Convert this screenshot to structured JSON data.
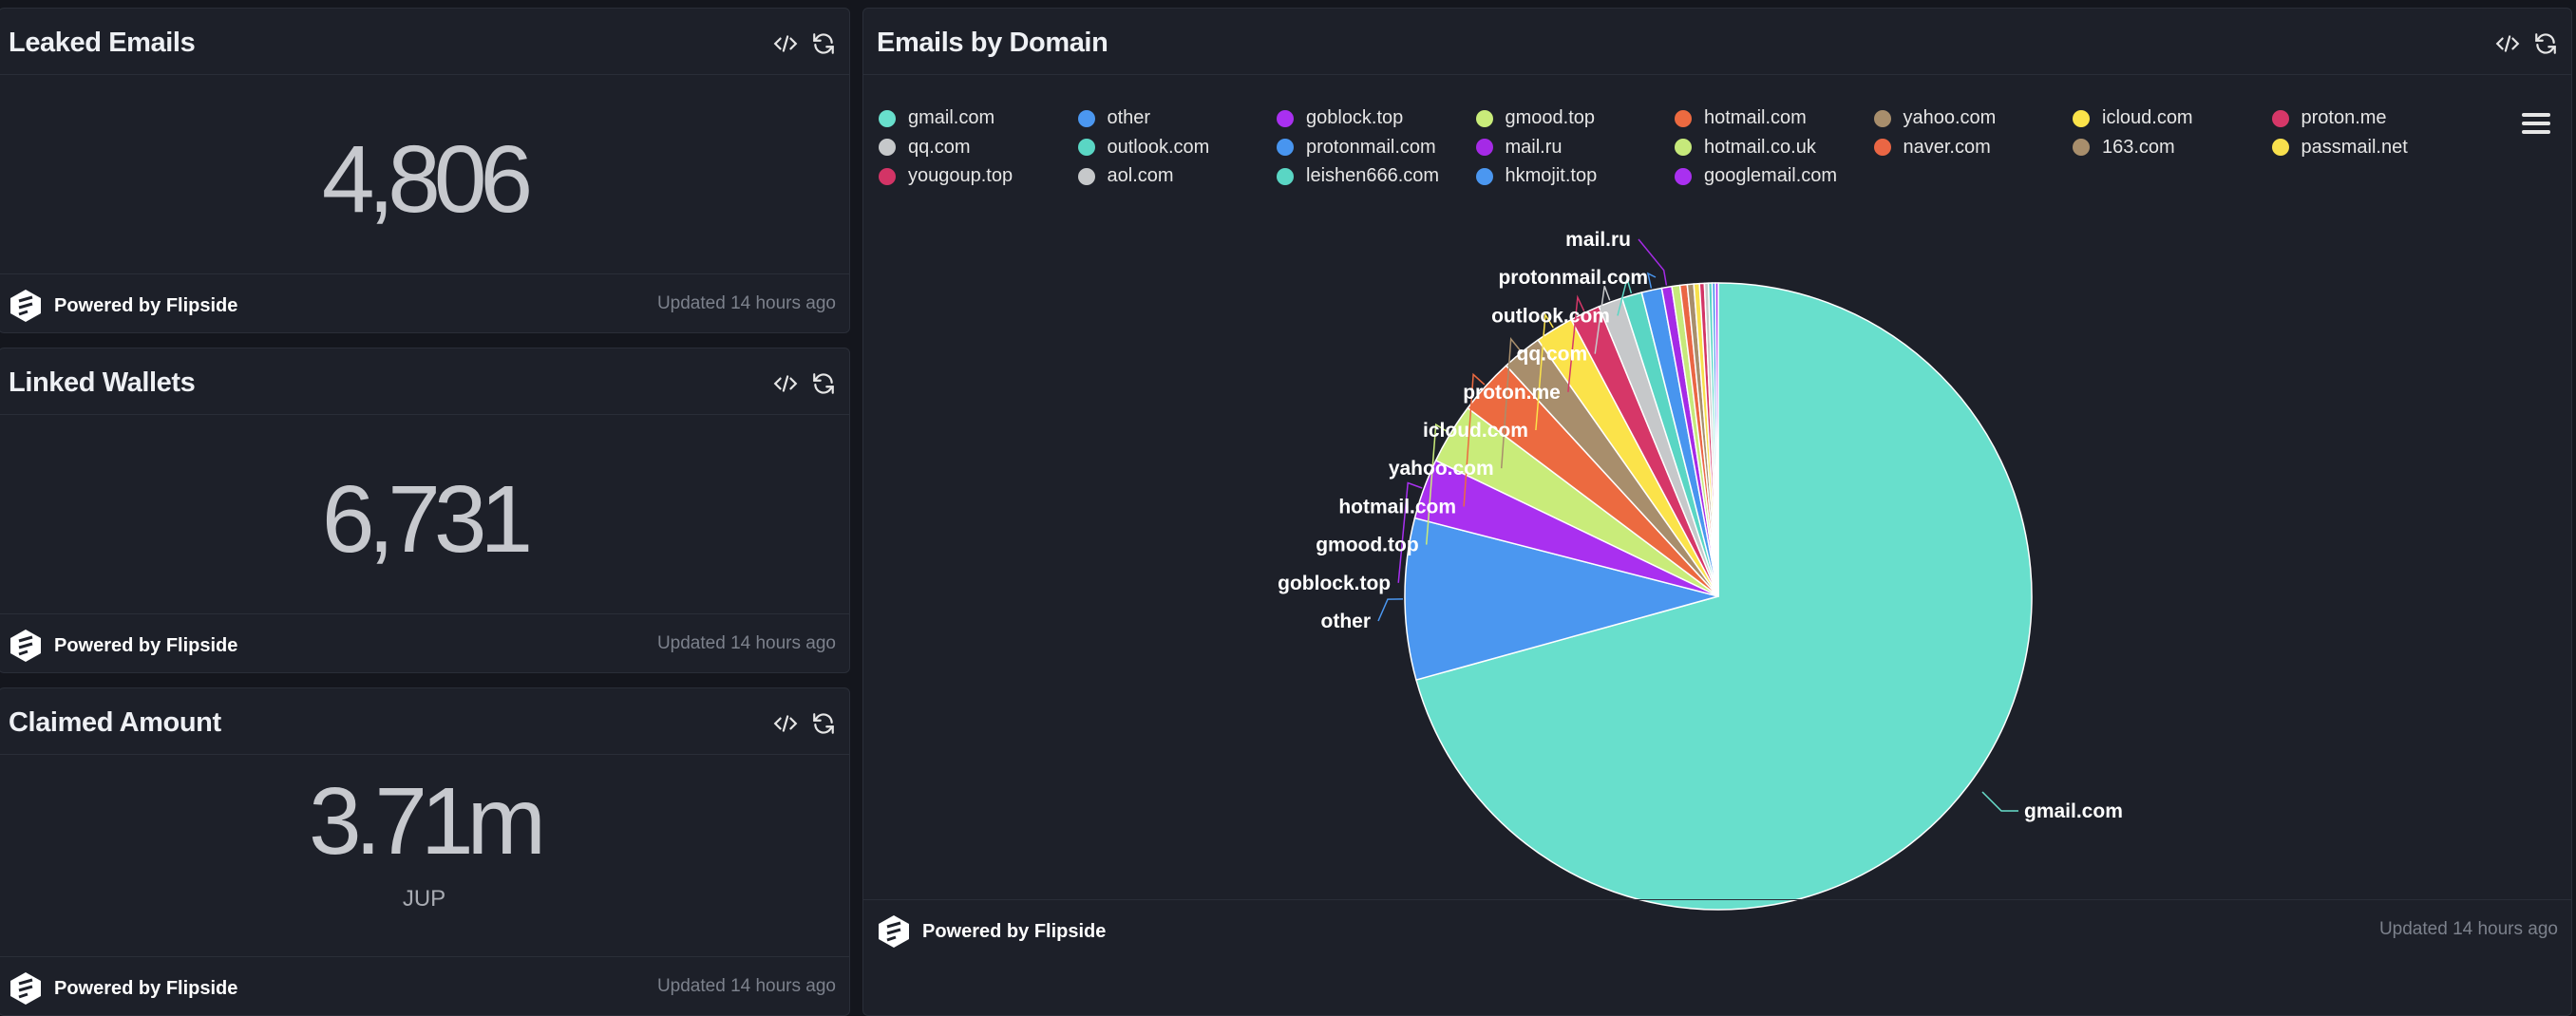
{
  "metrics": [
    {
      "title": "Leaked Emails",
      "value": "4,806",
      "unit": "",
      "powered": "Powered by Flipside",
      "updated": "Updated 14 hours ago"
    },
    {
      "title": "Linked Wallets",
      "value": "6,731",
      "unit": "",
      "powered": "Powered by Flipside",
      "updated": "Updated 14 hours ago"
    },
    {
      "title": "Claimed Amount",
      "value": "3.71m",
      "unit": "JUP",
      "powered": "Powered by Flipside",
      "updated": "Updated 14 hours ago"
    }
  ],
  "chart_panel": {
    "title": "Emails by Domain",
    "powered": "Powered by Flipside",
    "updated": "Updated 14 hours ago"
  },
  "chart_data": {
    "type": "pie",
    "title": "Emails by Domain",
    "legend_position": "top",
    "slices": [
      {
        "label": "gmail.com",
        "value": 3400,
        "color": "#68dfcc",
        "callout": "gmail.com"
      },
      {
        "label": "other",
        "value": 400,
        "color": "#4b97f0",
        "callout": "other"
      },
      {
        "label": "goblock.top",
        "value": 150,
        "color": "#a930f0",
        "callout": "goblock.top"
      },
      {
        "label": "gmood.top",
        "value": 150,
        "color": "#c9ec7a",
        "callout": "gmood.top"
      },
      {
        "label": "hotmail.com",
        "value": 140,
        "color": "#ec6a40",
        "callout": "hotmail.com"
      },
      {
        "label": "yahoo.com",
        "value": 100,
        "color": "#a88e6c",
        "callout": "yahoo.com"
      },
      {
        "label": "icloud.com",
        "value": 95,
        "color": "#fbe34a",
        "callout": "icloud.com"
      },
      {
        "label": "proton.me",
        "value": 75,
        "color": "#d63768",
        "callout": "proton.me"
      },
      {
        "label": "qq.com",
        "value": 60,
        "color": "#c6c8ca",
        "callout": "qq.com"
      },
      {
        "label": "outlook.com",
        "value": 50,
        "color": "#5ad6c4",
        "callout": "outlook.com"
      },
      {
        "label": "protonmail.com",
        "value": 50,
        "color": "#4895ef",
        "callout": "protonmail.com"
      },
      {
        "label": "mail.ru",
        "value": 25,
        "color": "#a52ae6",
        "callout": "mail.ru"
      },
      {
        "label": "hotmail.co.uk",
        "value": 20,
        "color": "#c6e97b",
        "callout": ""
      },
      {
        "label": "naver.com",
        "value": 18,
        "color": "#ea6644",
        "callout": ""
      },
      {
        "label": "163.com",
        "value": 16,
        "color": "#a88e6c",
        "callout": ""
      },
      {
        "label": "passmail.net",
        "value": 14,
        "color": "#f8e04d",
        "callout": ""
      },
      {
        "label": "yougoup.top",
        "value": 12,
        "color": "#d33466",
        "callout": ""
      },
      {
        "label": "aol.com",
        "value": 10,
        "color": "#c6c8ca",
        "callout": ""
      },
      {
        "label": "leishen666.com",
        "value": 9,
        "color": "#5ad6c4",
        "callout": ""
      },
      {
        "label": "hkmojit.top",
        "value": 8,
        "color": "#4b97f0",
        "callout": ""
      },
      {
        "label": "googlemail.com",
        "value": 7,
        "color": "#a930f0",
        "callout": ""
      }
    ]
  }
}
